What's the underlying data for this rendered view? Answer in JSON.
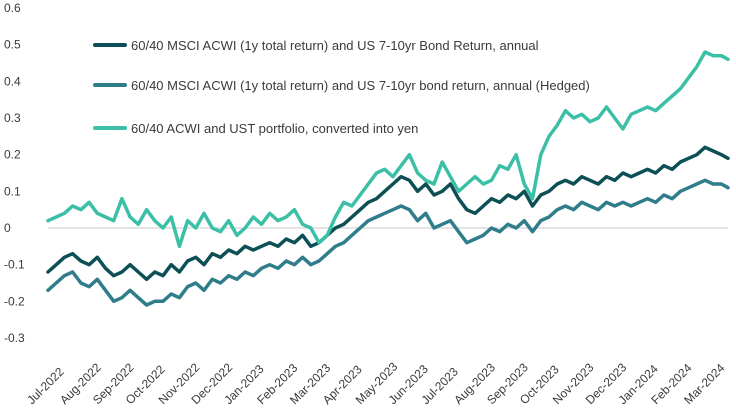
{
  "chart_data": {
    "type": "line",
    "title": "",
    "xlabel": "",
    "ylabel": "",
    "ylim": [
      -0.3,
      0.6
    ],
    "yticks": [
      -0.3,
      -0.2,
      -0.1,
      0,
      0.1,
      0.2,
      0.3,
      0.4,
      0.5,
      0.6
    ],
    "ytick_labels": [
      "-0.3",
      "-0.2",
      "-0.1",
      "0",
      "0.1",
      "0.2",
      "0.3",
      "0.4",
      "0.5",
      "0.6"
    ],
    "x_tick_labels": [
      "Jul-2022",
      "Aug-2022",
      "Sep-2022",
      "Oct-2022",
      "Nov-2022",
      "Dec-2022",
      "Jan-2023",
      "Feb-2023",
      "Mar-2023",
      "Apr-2023",
      "May-2023",
      "Jun-2023",
      "Jul-2023",
      "Aug-2023",
      "Sep-2023",
      "Oct-2023",
      "Nov-2023",
      "Dec-2023",
      "Jan-2024",
      "Feb-2024",
      "Mar-2024"
    ],
    "xlim": [
      0,
      20.7
    ],
    "grid": false,
    "legend_position": "top-center",
    "series": [
      {
        "name": "60/40 MSCI ACWI (1y total return) and US 7-10yr Bond Return, annual",
        "color": "#0c4f55",
        "x": [
          0,
          0.25,
          0.5,
          0.75,
          1,
          1.25,
          1.5,
          1.75,
          2,
          2.25,
          2.5,
          2.75,
          3,
          3.25,
          3.5,
          3.75,
          4,
          4.25,
          4.5,
          4.75,
          5,
          5.25,
          5.5,
          5.75,
          6,
          6.25,
          6.5,
          6.75,
          7,
          7.25,
          7.5,
          7.75,
          8,
          8.25,
          8.5,
          8.75,
          9,
          9.25,
          9.5,
          9.75,
          10,
          10.25,
          10.5,
          10.75,
          11,
          11.25,
          11.5,
          11.75,
          12,
          12.25,
          12.5,
          12.75,
          13,
          13.25,
          13.5,
          13.75,
          14,
          14.25,
          14.5,
          14.75,
          15,
          15.25,
          15.5,
          15.75,
          16,
          16.25,
          16.5,
          16.75,
          17,
          17.25,
          17.5,
          17.75,
          18,
          18.25,
          18.5,
          18.75,
          19,
          19.25,
          19.5,
          19.75,
          20,
          20.25,
          20.5,
          20.7
        ],
        "y": [
          -0.12,
          -0.1,
          -0.08,
          -0.07,
          -0.09,
          -0.1,
          -0.08,
          -0.11,
          -0.13,
          -0.12,
          -0.1,
          -0.12,
          -0.14,
          -0.12,
          -0.13,
          -0.1,
          -0.12,
          -0.09,
          -0.08,
          -0.1,
          -0.07,
          -0.08,
          -0.06,
          -0.07,
          -0.05,
          -0.06,
          -0.05,
          -0.04,
          -0.05,
          -0.03,
          -0.04,
          -0.02,
          -0.05,
          -0.04,
          -0.02,
          0,
          0.01,
          0.03,
          0.05,
          0.07,
          0.08,
          0.1,
          0.12,
          0.14,
          0.13,
          0.1,
          0.12,
          0.09,
          0.1,
          0.12,
          0.08,
          0.05,
          0.04,
          0.06,
          0.08,
          0.07,
          0.09,
          0.08,
          0.1,
          0.06,
          0.09,
          0.1,
          0.12,
          0.13,
          0.12,
          0.14,
          0.13,
          0.12,
          0.14,
          0.13,
          0.15,
          0.14,
          0.15,
          0.16,
          0.15,
          0.17,
          0.16,
          0.18,
          0.19,
          0.2,
          0.22,
          0.21,
          0.2,
          0.19
        ]
      },
      {
        "name": "60/40 MSCI ACWI (1y total return) and US 7-10yr bond return, annual  (Hedged)",
        "color": "#2f7d8a",
        "x": [
          0,
          0.25,
          0.5,
          0.75,
          1,
          1.25,
          1.5,
          1.75,
          2,
          2.25,
          2.5,
          2.75,
          3,
          3.25,
          3.5,
          3.75,
          4,
          4.25,
          4.5,
          4.75,
          5,
          5.25,
          5.5,
          5.75,
          6,
          6.25,
          6.5,
          6.75,
          7,
          7.25,
          7.5,
          7.75,
          8,
          8.25,
          8.5,
          8.75,
          9,
          9.25,
          9.5,
          9.75,
          10,
          10.25,
          10.5,
          10.75,
          11,
          11.25,
          11.5,
          11.75,
          12,
          12.25,
          12.5,
          12.75,
          13,
          13.25,
          13.5,
          13.75,
          14,
          14.25,
          14.5,
          14.75,
          15,
          15.25,
          15.5,
          15.75,
          16,
          16.25,
          16.5,
          16.75,
          17,
          17.25,
          17.5,
          17.75,
          18,
          18.25,
          18.5,
          18.75,
          19,
          19.25,
          19.5,
          19.75,
          20,
          20.25,
          20.5,
          20.7
        ],
        "y": [
          -0.17,
          -0.15,
          -0.13,
          -0.12,
          -0.15,
          -0.16,
          -0.14,
          -0.17,
          -0.2,
          -0.19,
          -0.17,
          -0.19,
          -0.21,
          -0.2,
          -0.2,
          -0.18,
          -0.19,
          -0.16,
          -0.15,
          -0.17,
          -0.14,
          -0.15,
          -0.13,
          -0.14,
          -0.12,
          -0.13,
          -0.11,
          -0.1,
          -0.11,
          -0.09,
          -0.1,
          -0.08,
          -0.1,
          -0.09,
          -0.07,
          -0.05,
          -0.04,
          -0.02,
          0,
          0.02,
          0.03,
          0.04,
          0.05,
          0.06,
          0.05,
          0.02,
          0.04,
          0,
          0.01,
          0.02,
          -0.01,
          -0.04,
          -0.03,
          -0.02,
          0,
          -0.01,
          0.01,
          0,
          0.02,
          -0.01,
          0.02,
          0.03,
          0.05,
          0.06,
          0.05,
          0.07,
          0.06,
          0.05,
          0.07,
          0.06,
          0.07,
          0.06,
          0.07,
          0.08,
          0.07,
          0.09,
          0.08,
          0.1,
          0.11,
          0.12,
          0.13,
          0.12,
          0.12,
          0.11
        ]
      },
      {
        "name": "60/40 ACWI and UST portfolio, converted into yen",
        "color": "#3bbfa6",
        "x": [
          0,
          0.25,
          0.5,
          0.75,
          1,
          1.25,
          1.5,
          1.75,
          2,
          2.25,
          2.5,
          2.75,
          3,
          3.25,
          3.5,
          3.75,
          4,
          4.25,
          4.5,
          4.75,
          5,
          5.25,
          5.5,
          5.75,
          6,
          6.25,
          6.5,
          6.75,
          7,
          7.25,
          7.5,
          7.75,
          8,
          8.25,
          8.5,
          8.75,
          9,
          9.25,
          9.5,
          9.75,
          10,
          10.25,
          10.5,
          10.75,
          11,
          11.25,
          11.5,
          11.75,
          12,
          12.25,
          12.5,
          12.75,
          13,
          13.25,
          13.5,
          13.75,
          14,
          14.25,
          14.5,
          14.75,
          15,
          15.25,
          15.5,
          15.75,
          16,
          16.25,
          16.5,
          16.75,
          17,
          17.25,
          17.5,
          17.75,
          18,
          18.25,
          18.5,
          18.75,
          19,
          19.25,
          19.5,
          19.75,
          20,
          20.25,
          20.5,
          20.7
        ],
        "y": [
          0.02,
          0.03,
          0.04,
          0.06,
          0.05,
          0.07,
          0.04,
          0.03,
          0.02,
          0.08,
          0.03,
          0.01,
          0.05,
          0.02,
          0,
          0.03,
          -0.05,
          0.02,
          0,
          0.04,
          0,
          -0.01,
          0.02,
          -0.02,
          0,
          0.03,
          0.01,
          0.04,
          0.02,
          0.03,
          0.05,
          0.01,
          0,
          -0.04,
          -0.02,
          0.03,
          0.07,
          0.06,
          0.09,
          0.12,
          0.15,
          0.16,
          0.14,
          0.17,
          0.2,
          0.15,
          0.13,
          0.12,
          0.18,
          0.14,
          0.1,
          0.12,
          0.14,
          0.12,
          0.13,
          0.17,
          0.16,
          0.2,
          0.12,
          0.08,
          0.2,
          0.25,
          0.28,
          0.32,
          0.3,
          0.31,
          0.29,
          0.3,
          0.33,
          0.3,
          0.27,
          0.31,
          0.32,
          0.33,
          0.32,
          0.34,
          0.36,
          0.38,
          0.41,
          0.44,
          0.48,
          0.47,
          0.47,
          0.46
        ]
      }
    ]
  }
}
